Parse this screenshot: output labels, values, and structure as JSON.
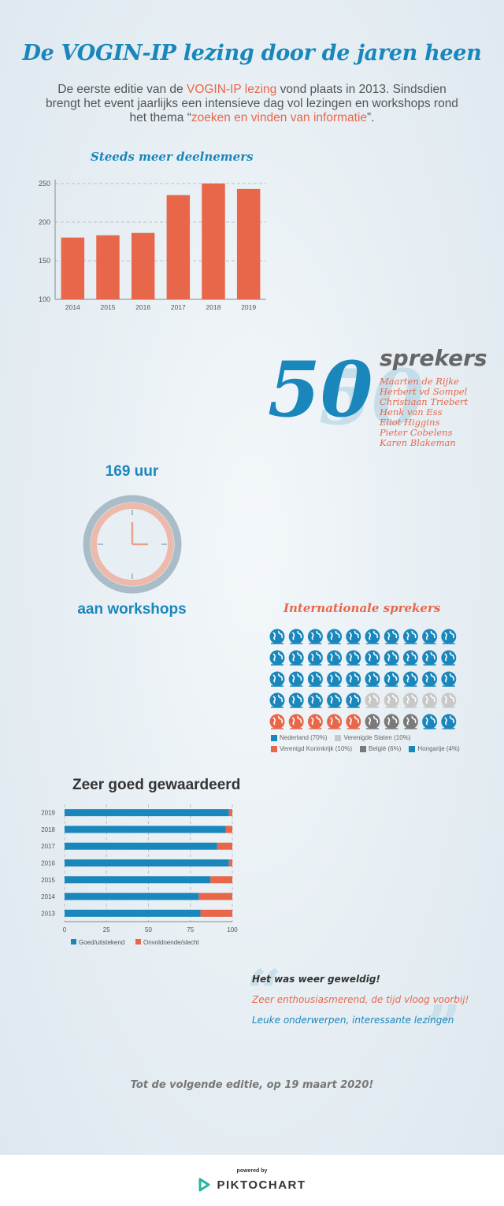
{
  "title": "De VOGIN-IP lezing door de jaren heen",
  "intro": {
    "part1": "De eerste editie van de ",
    "highlight1": "VOGIN-IP lezing",
    "part2": " vond plaats in 2013. Sindsdien brengt het event jaarlijks een intensieve dag vol lezingen en workshops rond het thema “",
    "highlight2": "zoeken en vinden van informatie",
    "part3": "”."
  },
  "colors": {
    "blue": "#1a87bc",
    "orange": "#e8674a",
    "lightgray": "#c8c8c8",
    "darkgray": "#7a7a7a"
  },
  "speakers": {
    "count": "50",
    "label": "sprekers",
    "names": [
      "Maarten de Rijke",
      "Herbert vd Sompel",
      "Christiaan Triebert",
      "Henk van Ess",
      "Eliot Higgins",
      "Pieter Cobelens",
      "Karen Blakeman"
    ]
  },
  "workshops": {
    "hours": "169 uur",
    "label": "aan workshops",
    "icon": "clock-icon"
  },
  "chart_data": [
    {
      "type": "bar",
      "title": "Steeds meer deelnemers",
      "categories": [
        "2014",
        "2015",
        "2016",
        "2017",
        "2018",
        "2019"
      ],
      "values": [
        180,
        183,
        186,
        235,
        250,
        243
      ],
      "ylim": [
        100,
        250
      ],
      "yticks": [
        100,
        150,
        200,
        250
      ],
      "grid": true,
      "color": "#e8674a"
    },
    {
      "type": "pictogram",
      "title": "Internationale sprekers",
      "total": 50,
      "icon": "globe-icon",
      "series": [
        {
          "name": "Nederland (70%)",
          "value": 70,
          "count": 35,
          "color": "#1a87bc"
        },
        {
          "name": "Verenigde Staten (10%)",
          "value": 10,
          "count": 5,
          "color": "#c8c8c8"
        },
        {
          "name": "Verenigd Koninkrijk (10%)",
          "value": 10,
          "count": 5,
          "color": "#e8674a"
        },
        {
          "name": "België (6%)",
          "value": 6,
          "count": 3,
          "color": "#7a7a7a"
        },
        {
          "name": "Hongarije (4%)",
          "value": 4,
          "count": 2,
          "color": "#1a87bc"
        }
      ],
      "legend": "bottom"
    },
    {
      "type": "bar",
      "orientation": "horizontal",
      "stacked": true,
      "title": "Zeer goed gewaardeerd",
      "categories": [
        "2019",
        "2018",
        "2017",
        "2016",
        "2015",
        "2014",
        "2013"
      ],
      "series": [
        {
          "name": "Goed/uitstekend",
          "values": [
            98,
            96,
            91,
            98,
            87,
            80,
            81
          ],
          "color": "#1a87bc"
        },
        {
          "name": "Onvoldoende/slecht",
          "values": [
            2,
            4,
            9,
            2,
            13,
            20,
            19
          ],
          "color": "#e8674a"
        }
      ],
      "xlim": [
        0,
        100
      ],
      "xticks": [
        0,
        25,
        50,
        75,
        100
      ],
      "legend": "bottom-left"
    }
  ],
  "quotes": [
    "Het was weer geweldig!",
    "Zeer enthousiasmerend, de tijd vloog voorbij!",
    "Leuke onderwerpen, interessante lezingen"
  ],
  "closing": "Tot de volgende editie,  op 19 maart 2020!",
  "footer": {
    "powered": "powered by",
    "brand": "PIKTOCHART",
    "icon": "piktochart-logo-icon"
  }
}
